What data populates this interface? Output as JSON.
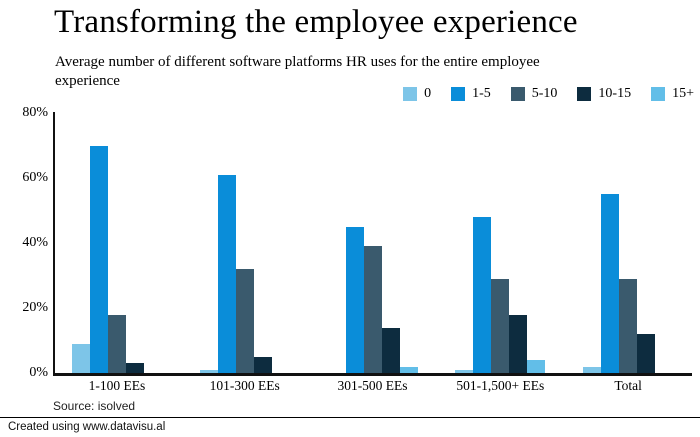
{
  "header": {
    "title": "Transforming the employee experience",
    "subtitle_lines": [
      "Average number of different software platforms HR uses for the entire employee",
      "experience"
    ]
  },
  "chart_data": {
    "type": "bar",
    "title": "Transforming the employee experience",
    "subtitle": "Average number of different software platforms HR uses for the entire employee experience",
    "categories": [
      "1-100 EEs",
      "101-300 EEs",
      "301-500 EEs",
      "501-1,500+ EEs",
      "Total"
    ],
    "series": [
      {
        "name": "0",
        "color": "#7dc5e8",
        "values": [
          9,
          1,
          0,
          1,
          2
        ]
      },
      {
        "name": "1-5",
        "color": "#0a8dd9",
        "values": [
          70,
          61,
          45,
          48,
          55
        ]
      },
      {
        "name": "5-10",
        "color": "#3a5a6d",
        "values": [
          18,
          32,
          39,
          29,
          29
        ]
      },
      {
        "name": "10-15",
        "color": "#0d2c3f",
        "values": [
          3,
          5,
          14,
          18,
          12
        ]
      },
      {
        "name": "15+",
        "color": "#62bee8",
        "values": [
          0,
          0,
          2,
          4,
          0
        ]
      }
    ],
    "ylabel": "",
    "xlabel": "",
    "ylim": [
      0,
      80
    ],
    "yticks": [
      "80%",
      "60%",
      "40%",
      "20%",
      "0%"
    ],
    "grid": false,
    "legend_position": "top-right",
    "axis_color": "#111111"
  },
  "footer": {
    "source": "Source: isolved",
    "credit": "Created using www.datavisu.al"
  }
}
